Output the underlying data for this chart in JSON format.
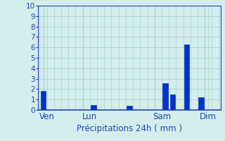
{
  "xlabel": "Précipitations 24h ( mm )",
  "ylim": [
    0,
    10
  ],
  "background_color": "#d4eeed",
  "grid_color": "#aacfcf",
  "bar_color": "#0033cc",
  "bar_edge_color": "#002299",
  "x_values": [
    0,
    1,
    2,
    3,
    4,
    5,
    6,
    7,
    8,
    9,
    10,
    11,
    12,
    13,
    14,
    15,
    16,
    17,
    18,
    19,
    20,
    21,
    22,
    23,
    24
  ],
  "y_values": [
    1.8,
    0,
    0,
    0,
    0,
    0,
    0,
    0.5,
    0,
    0,
    0,
    0,
    0.4,
    0,
    0,
    0,
    0,
    2.6,
    1.5,
    0,
    6.3,
    0,
    1.2,
    0,
    0
  ],
  "day_labels": [
    "Ven",
    "Lun",
    "Sam",
    "Dim"
  ],
  "day_positions": [
    0.5,
    6.5,
    16.5,
    23.0
  ],
  "day_vlines": [
    0,
    5.5,
    15.5,
    22.5
  ],
  "tick_color": "#2244bb",
  "axis_color": "#2244bb",
  "label_fontsize": 8.5,
  "tick_fontsize": 7.5,
  "yticks": [
    0,
    1,
    2,
    3,
    4,
    5,
    6,
    7,
    8,
    9,
    10
  ]
}
